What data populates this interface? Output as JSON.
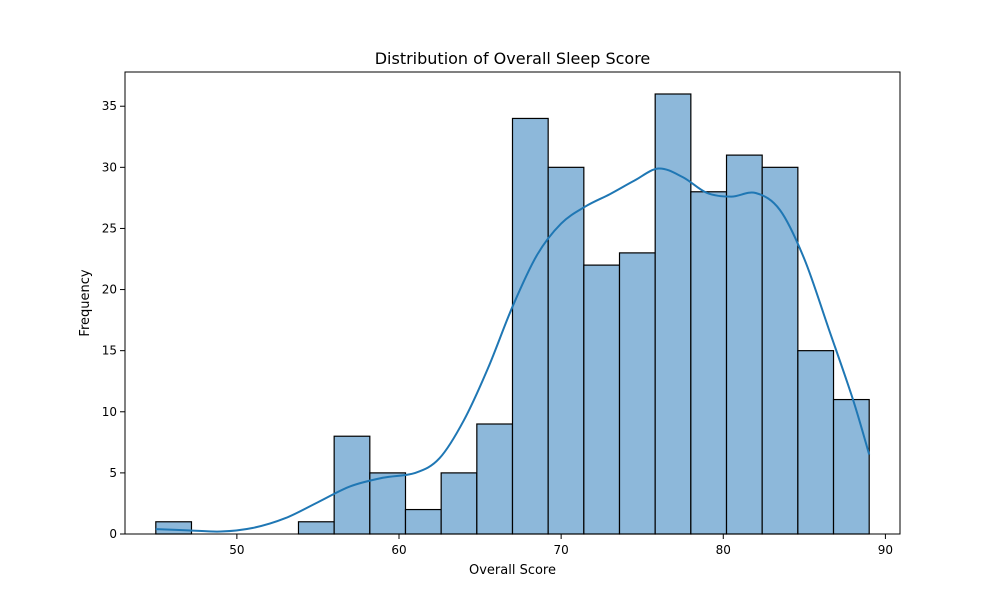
{
  "chart_data": {
    "type": "bar",
    "title": "Distribution of Overall Sleep Score",
    "xlabel": "Overall Score",
    "ylabel": "Frequency",
    "xlim": [
      43.1,
      90.9
    ],
    "ylim": [
      0,
      37.8
    ],
    "xticks": [
      50,
      60,
      70,
      80,
      90
    ],
    "yticks": [
      0,
      5,
      10,
      15,
      20,
      25,
      30,
      35
    ],
    "bins": [
      {
        "x0": 45.0,
        "x1": 47.2,
        "count": 1
      },
      {
        "x0": 47.2,
        "x1": 49.4,
        "count": 0
      },
      {
        "x0": 49.4,
        "x1": 51.6,
        "count": 0
      },
      {
        "x0": 51.6,
        "x1": 53.8,
        "count": 0
      },
      {
        "x0": 53.8,
        "x1": 56.0,
        "count": 1
      },
      {
        "x0": 56.0,
        "x1": 58.2,
        "count": 8
      },
      {
        "x0": 58.2,
        "x1": 60.4,
        "count": 5
      },
      {
        "x0": 60.4,
        "x1": 62.6,
        "count": 2
      },
      {
        "x0": 62.6,
        "x1": 64.8,
        "count": 5
      },
      {
        "x0": 64.8,
        "x1": 67.0,
        "count": 9
      },
      {
        "x0": 67.0,
        "x1": 69.2,
        "count": 34
      },
      {
        "x0": 69.2,
        "x1": 71.4,
        "count": 30
      },
      {
        "x0": 71.4,
        "x1": 73.6,
        "count": 22
      },
      {
        "x0": 73.6,
        "x1": 75.8,
        "count": 23
      },
      {
        "x0": 75.8,
        "x1": 78.0,
        "count": 36
      },
      {
        "x0": 78.0,
        "x1": 80.2,
        "count": 28
      },
      {
        "x0": 80.2,
        "x1": 82.4,
        "count": 31
      },
      {
        "x0": 82.4,
        "x1": 84.6,
        "count": 30
      },
      {
        "x0": 84.6,
        "x1": 86.8,
        "count": 15
      },
      {
        "x0": 86.8,
        "x1": 89.0,
        "count": 11
      }
    ],
    "kde": {
      "x": [
        45,
        47,
        49,
        51,
        53,
        55,
        57,
        59,
        61,
        62.5,
        64,
        65.5,
        67,
        68.5,
        70,
        71.5,
        73,
        74.5,
        76,
        77.5,
        79,
        80.5,
        82,
        83.5,
        85,
        86.5,
        88,
        89
      ],
      "y": [
        0.4,
        0.3,
        0.2,
        0.5,
        1.3,
        2.6,
        3.9,
        4.6,
        5.0,
        6.2,
        9.3,
        13.6,
        18.6,
        22.8,
        25.4,
        26.8,
        27.8,
        28.9,
        29.9,
        29.2,
        27.9,
        27.6,
        27.9,
        26.5,
        22.5,
        16.8,
        11.0,
        6.5
      ]
    },
    "colors": {
      "bar_fill": "#8db8da",
      "bar_edge": "#000000",
      "kde_line": "#1f77b4"
    },
    "grid": false,
    "legend": false
  }
}
